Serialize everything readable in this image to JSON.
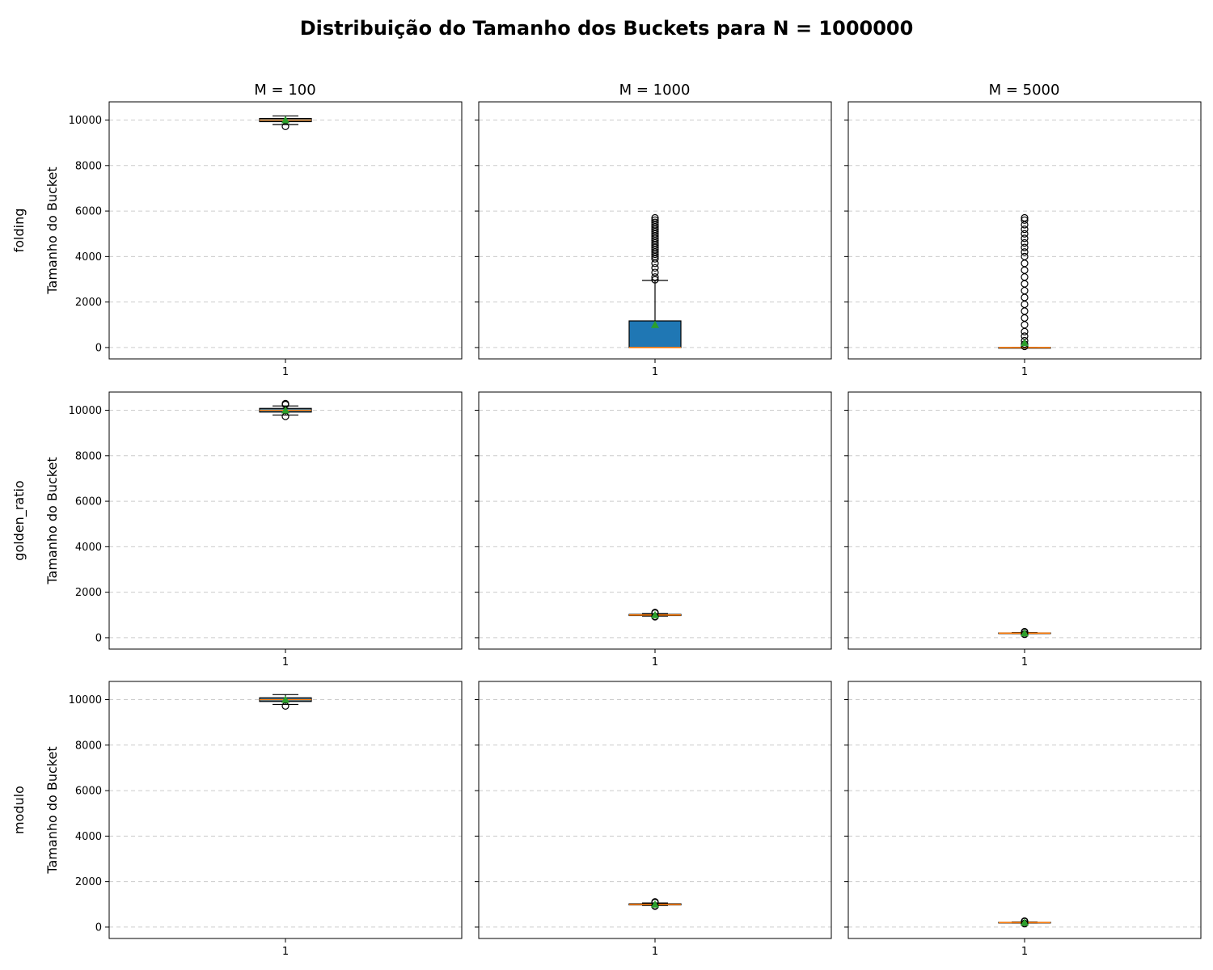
{
  "chart_data": {
    "type": "box",
    "title": "Distribuição do Tamanho dos Buckets para N = 1000000",
    "ylabel": "Tamanho do Bucket",
    "ylim": [
      -500,
      10800
    ],
    "yticks": [
      0,
      2000,
      4000,
      6000,
      8000,
      10000
    ],
    "xticks": [
      "1"
    ],
    "grid": "y-dashed",
    "columns": [
      "M = 100",
      "M = 1000",
      "M = 5000"
    ],
    "rows": [
      "folding",
      "golden_ratio",
      "modulo"
    ],
    "colors": {
      "box_fill": "#1f77b4",
      "median": "#ff7f0e",
      "mean_marker": "#2ca02c",
      "grid": "#cccccc"
    },
    "panels": [
      {
        "row": "folding",
        "column": "M = 100",
        "q1": 9930,
        "median": 10000,
        "q3": 10070,
        "whisker_low": 9800,
        "whisker_high": 10180,
        "mean": 10000,
        "outliers": [
          9720
        ]
      },
      {
        "row": "folding",
        "column": "M = 1000",
        "q1": 0,
        "median": 0,
        "q3": 1170,
        "whisker_low": 0,
        "whisker_high": 2950,
        "mean": 1000,
        "outliers": [
          2980,
          3100,
          3300,
          3500,
          3700,
          3900,
          4000,
          4100,
          4200,
          4300,
          4400,
          4500,
          4600,
          4700,
          4800,
          4900,
          5000,
          5100,
          5200,
          5300,
          5400,
          5500,
          5600,
          5700
        ]
      },
      {
        "row": "folding",
        "column": "M = 5000",
        "q1": 0,
        "median": 0,
        "q3": 0,
        "whisker_low": 0,
        "whisker_high": 0,
        "mean": 200,
        "outliers": [
          50,
          150,
          300,
          500,
          700,
          1000,
          1300,
          1600,
          1900,
          2200,
          2500,
          2800,
          3100,
          3400,
          3700,
          4000,
          4200,
          4400,
          4600,
          4800,
          5000,
          5200,
          5400,
          5600,
          5700
        ]
      },
      {
        "row": "golden_ratio",
        "column": "M = 100",
        "q1": 9920,
        "median": 10000,
        "q3": 10080,
        "whisker_low": 9790,
        "whisker_high": 10190,
        "mean": 10000,
        "outliers": [
          9730,
          10250,
          10290
        ]
      },
      {
        "row": "golden_ratio",
        "column": "M = 1000",
        "q1": 975,
        "median": 1000,
        "q3": 1025,
        "whisker_low": 950,
        "whisker_high": 1060,
        "mean": 1000,
        "outliers": [
          920,
          940,
          1080,
          1110
        ]
      },
      {
        "row": "golden_ratio",
        "column": "M = 5000",
        "q1": 190,
        "median": 200,
        "q3": 210,
        "whisker_low": 180,
        "whisker_high": 225,
        "mean": 200,
        "outliers": [
          150,
          165,
          245,
          265
        ]
      },
      {
        "row": "modulo",
        "column": "M = 100",
        "q1": 9920,
        "median": 10000,
        "q3": 10080,
        "whisker_low": 9790,
        "whisker_high": 10220,
        "mean": 10000,
        "outliers": [
          9720
        ]
      },
      {
        "row": "modulo",
        "column": "M = 1000",
        "q1": 975,
        "median": 1000,
        "q3": 1025,
        "whisker_low": 950,
        "whisker_high": 1060,
        "mean": 1000,
        "outliers": [
          920,
          940,
          1080,
          1110
        ]
      },
      {
        "row": "modulo",
        "column": "M = 5000",
        "q1": 190,
        "median": 200,
        "q3": 210,
        "whisker_low": 180,
        "whisker_high": 225,
        "mean": 200,
        "outliers": [
          150,
          165,
          245,
          265
        ]
      }
    ]
  }
}
